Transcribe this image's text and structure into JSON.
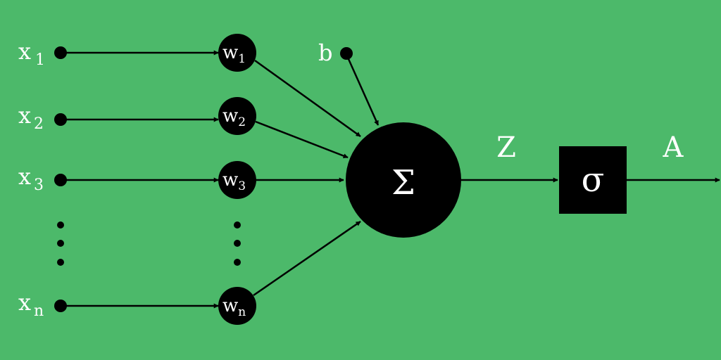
{
  "colors": {
    "background": "#4cb96a",
    "node": "#000000",
    "text": "#ffffff"
  },
  "inputs": [
    {
      "base": "x",
      "sub": "1"
    },
    {
      "base": "x",
      "sub": "2"
    },
    {
      "base": "x",
      "sub": "3"
    },
    {
      "base": "x",
      "sub": "n"
    }
  ],
  "weights": [
    {
      "base": "w",
      "sub": "1"
    },
    {
      "base": "w",
      "sub": "2"
    },
    {
      "base": "w",
      "sub": "3"
    },
    {
      "base": "w",
      "sub": "n"
    }
  ],
  "bias": {
    "label": "b"
  },
  "sum": {
    "symbol": "Σ"
  },
  "z_label": "Z",
  "activation": {
    "symbol": "σ"
  },
  "output_label": "A"
}
